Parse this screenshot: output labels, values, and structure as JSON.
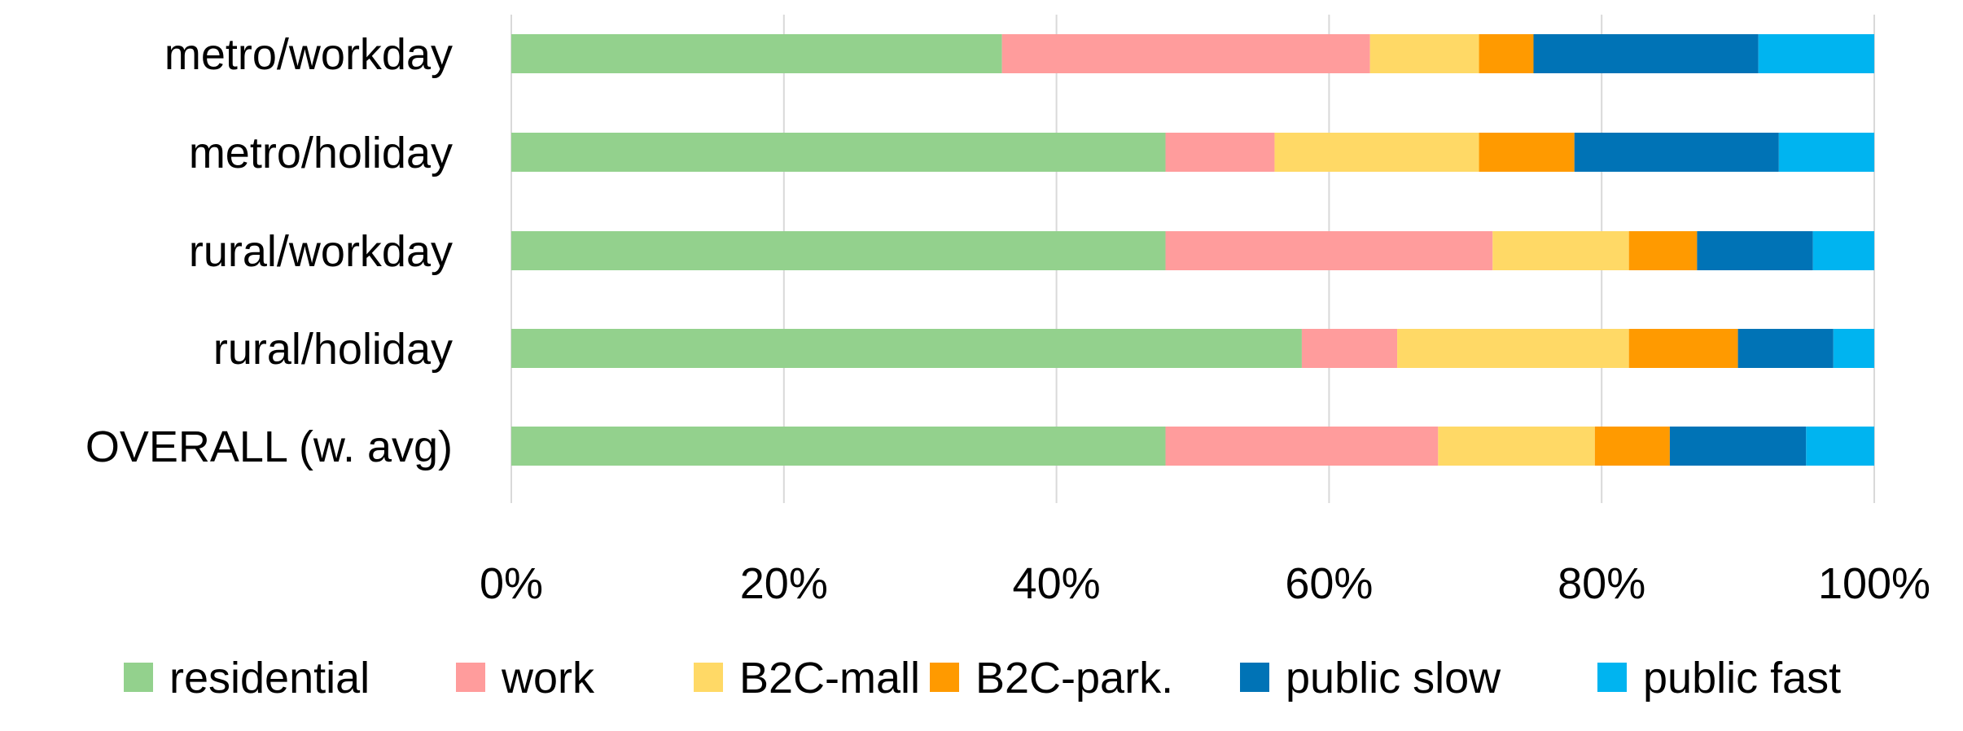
{
  "chart_data": {
    "type": "bar",
    "orientation": "horizontal",
    "stacked": "percent",
    "title": "",
    "xlabel": "",
    "ylabel": "",
    "categories": [
      "metro/workday",
      "metro/holiday",
      "rural/workday",
      "rural/holiday",
      "OVERALL (w. avg)"
    ],
    "xlim": [
      0,
      100
    ],
    "x_ticks": [
      0,
      20,
      40,
      60,
      80,
      100
    ],
    "x_tick_labels": [
      "0%",
      "20%",
      "40%",
      "60%",
      "80%",
      "100%"
    ],
    "grid": "vertical",
    "legend": "bottom",
    "series": [
      {
        "name": "residential",
        "color": "#93d18d",
        "values": [
          36,
          48,
          48,
          58,
          48
        ]
      },
      {
        "name": "work",
        "color": "#ff9c9c",
        "values": [
          27,
          8,
          24,
          7,
          20
        ]
      },
      {
        "name": "B2C-mall",
        "color": "#ffd966",
        "values": [
          8,
          15,
          10,
          17,
          11.5
        ]
      },
      {
        "name": "B2C-park.",
        "color": "#ff9a00",
        "values": [
          4,
          7,
          5,
          8,
          5.5
        ]
      },
      {
        "name": "public slow",
        "color": "#0073b6",
        "values": [
          16.5,
          15,
          8.5,
          7,
          10
        ]
      },
      {
        "name": "public fast",
        "color": "#00b4f0",
        "values": [
          8.5,
          7,
          4.5,
          3,
          5
        ]
      }
    ]
  }
}
